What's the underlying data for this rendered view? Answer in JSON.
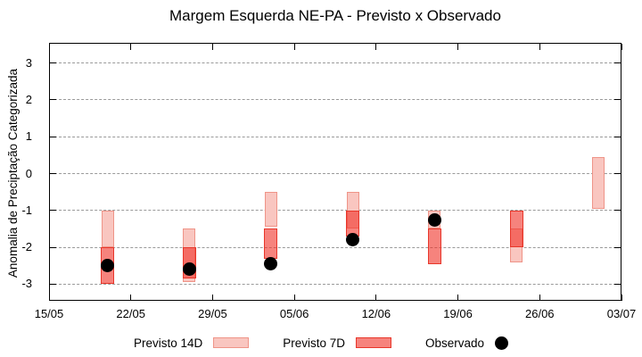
{
  "chart_data": {
    "type": "bar",
    "title": "Margem Esquerda NE-PA - Previsto x Observado",
    "ylabel": "Anomalia de Preciptação Categorizada",
    "xlabel": "",
    "ylim": [
      -3.5,
      3.5
    ],
    "yticks": [
      3,
      2,
      1,
      0,
      -1,
      -2,
      -3
    ],
    "xtick_labels": [
      "15/05",
      "22/05",
      "29/05",
      "05/06",
      "12/06",
      "19/06",
      "26/06",
      "03/07"
    ],
    "xtick_days": [
      0,
      7,
      14,
      21,
      28,
      35,
      42,
      49
    ],
    "x_axis_days_total": 49,
    "grid": "horizontal-dashed",
    "legend_position": "bottom-center",
    "colors": {
      "previsto_14d_fill": "#f9c6c0",
      "previsto_14d_border": "#ef9488",
      "previsto_7d_fill": "rgba(240,48,38,0.6)",
      "previsto_7d_border": "#e8362a",
      "observado": "#000000",
      "gridline": "#9a9a9a"
    },
    "series": [
      {
        "name": "Previsto 14D",
        "kind": "range-bar",
        "points": [
          {
            "date": "20/05",
            "day": 5,
            "low": -2.0,
            "high": -1.0
          },
          {
            "date": "27/05",
            "day": 12,
            "low": -2.95,
            "high": -1.5
          },
          {
            "date": "03/06",
            "day": 19,
            "low": -1.45,
            "high": -0.5
          },
          {
            "date": "10/06",
            "day": 26,
            "low": -1.5,
            "high": -0.5
          },
          {
            "date": "17/06",
            "day": 33,
            "low": -1.5,
            "high": -1.0
          },
          {
            "date": "24/06",
            "day": 40,
            "low": -2.4,
            "high": -1.5
          },
          {
            "date": "01/07",
            "day": 47,
            "low": -0.95,
            "high": 0.45
          }
        ]
      },
      {
        "name": "Previsto 7D",
        "kind": "range-bar",
        "points": [
          {
            "date": "20/05",
            "day": 5,
            "low": -3.0,
            "high": -2.0
          },
          {
            "date": "27/05",
            "day": 12,
            "low": -2.85,
            "high": -2.0
          },
          {
            "date": "03/06",
            "day": 19,
            "low": -2.3,
            "high": -1.5
          },
          {
            "date": "10/06",
            "day": 26,
            "low": -1.7,
            "high": -1.0
          },
          {
            "date": "17/06",
            "day": 33,
            "low": -2.45,
            "high": -1.5
          },
          {
            "date": "24/06",
            "day": 40,
            "low": -2.0,
            "high": -1.0
          }
        ]
      },
      {
        "name": "Observado",
        "kind": "dot",
        "points": [
          {
            "date": "20/05",
            "day": 5,
            "y": -2.5
          },
          {
            "date": "27/05",
            "day": 12,
            "y": -2.6
          },
          {
            "date": "03/06",
            "day": 19,
            "y": -2.45
          },
          {
            "date": "10/06",
            "day": 26,
            "y": -1.8
          },
          {
            "date": "17/06",
            "day": 33,
            "y": -1.25
          }
        ]
      }
    ]
  }
}
